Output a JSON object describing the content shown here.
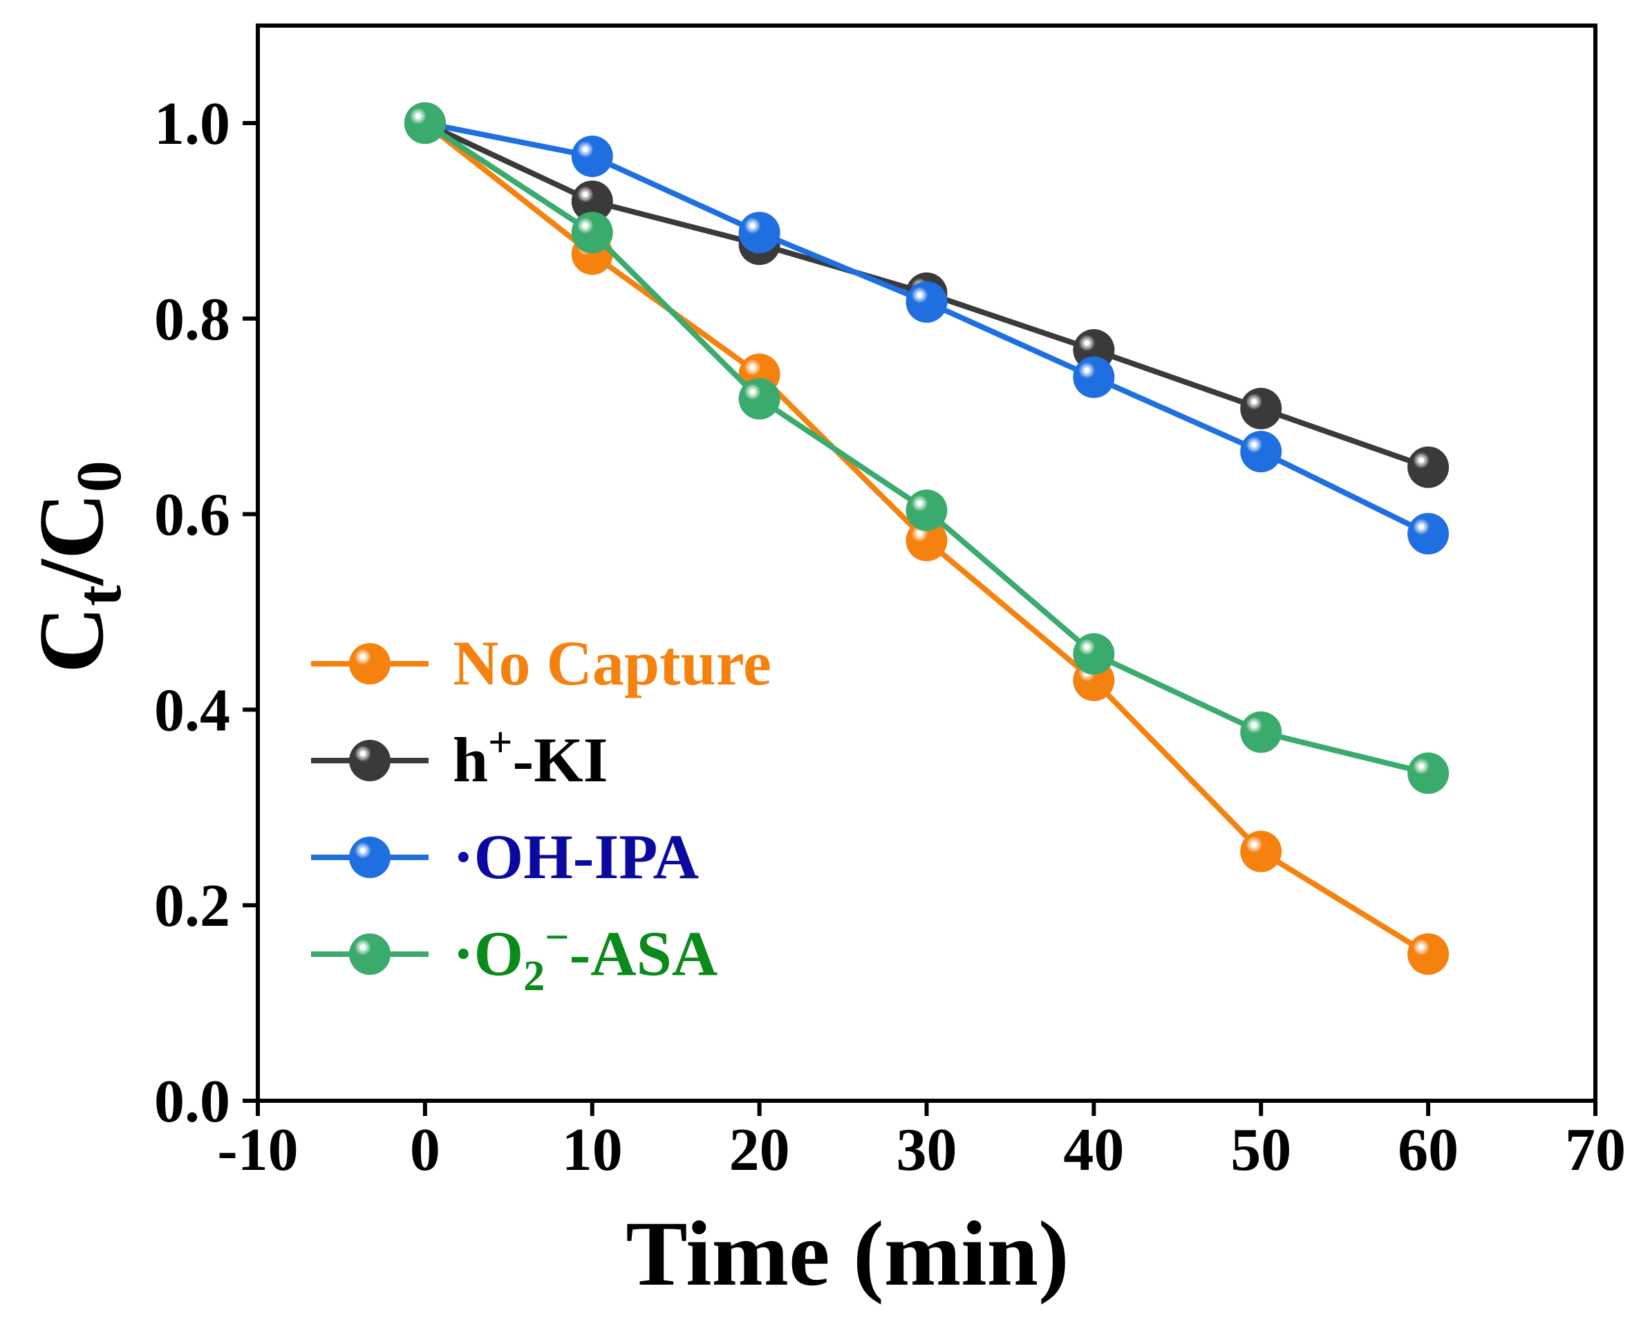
{
  "chart_data": {
    "type": "line",
    "title": "",
    "xlabel": "Time (min)",
    "ylabel": {
      "base": "C",
      "sub1": "t",
      "slash": "/C",
      "sub2": "0"
    },
    "xlim": [
      -10,
      70
    ],
    "ylim": [
      0.0,
      1.1
    ],
    "xticks": [
      -10,
      0,
      10,
      20,
      30,
      40,
      50,
      60,
      70
    ],
    "xtick_labels": [
      "-10",
      "0",
      "10",
      "20",
      "30",
      "40",
      "50",
      "60",
      "70"
    ],
    "yticks": [
      0.0,
      0.2,
      0.4,
      0.6,
      0.8,
      1.0
    ],
    "ytick_labels": [
      "0.0",
      "0.2",
      "0.4",
      "0.6",
      "0.8",
      "1.0"
    ],
    "x": [
      0,
      10,
      20,
      30,
      40,
      50,
      60
    ],
    "legend_position": "center-left",
    "series": [
      {
        "name": "No Capture",
        "label_parts": {
          "main": "No Capture"
        },
        "color": "#f5820f",
        "text_color": "#f5820f",
        "values": [
          1.0,
          0.866,
          0.743,
          0.573,
          0.43,
          0.255,
          0.15
        ]
      },
      {
        "name": "h+-KI",
        "label_parts": {
          "pre": "h",
          "sup": "+",
          "post": "-KI"
        },
        "color": "#3a3a3a",
        "text_color": "#000000",
        "values": [
          1.0,
          0.92,
          0.876,
          0.826,
          0.768,
          0.708,
          0.648
        ]
      },
      {
        "name": "·OH-IPA",
        "label_parts": {
          "main": "·OH-IPA"
        },
        "color": "#1f6fe0",
        "text_color": "#0a0aa0",
        "values": [
          1.0,
          0.966,
          0.888,
          0.817,
          0.74,
          0.664,
          0.58
        ]
      },
      {
        "name": "·O2−-ASA",
        "label_parts": {
          "pre": "·O",
          "sub": "2",
          "sup": "−",
          "post": "-ASA"
        },
        "color": "#3aab6c",
        "text_color": "#0a8a1a",
        "values": [
          1.0,
          0.888,
          0.718,
          0.604,
          0.457,
          0.377,
          0.335
        ]
      }
    ]
  }
}
